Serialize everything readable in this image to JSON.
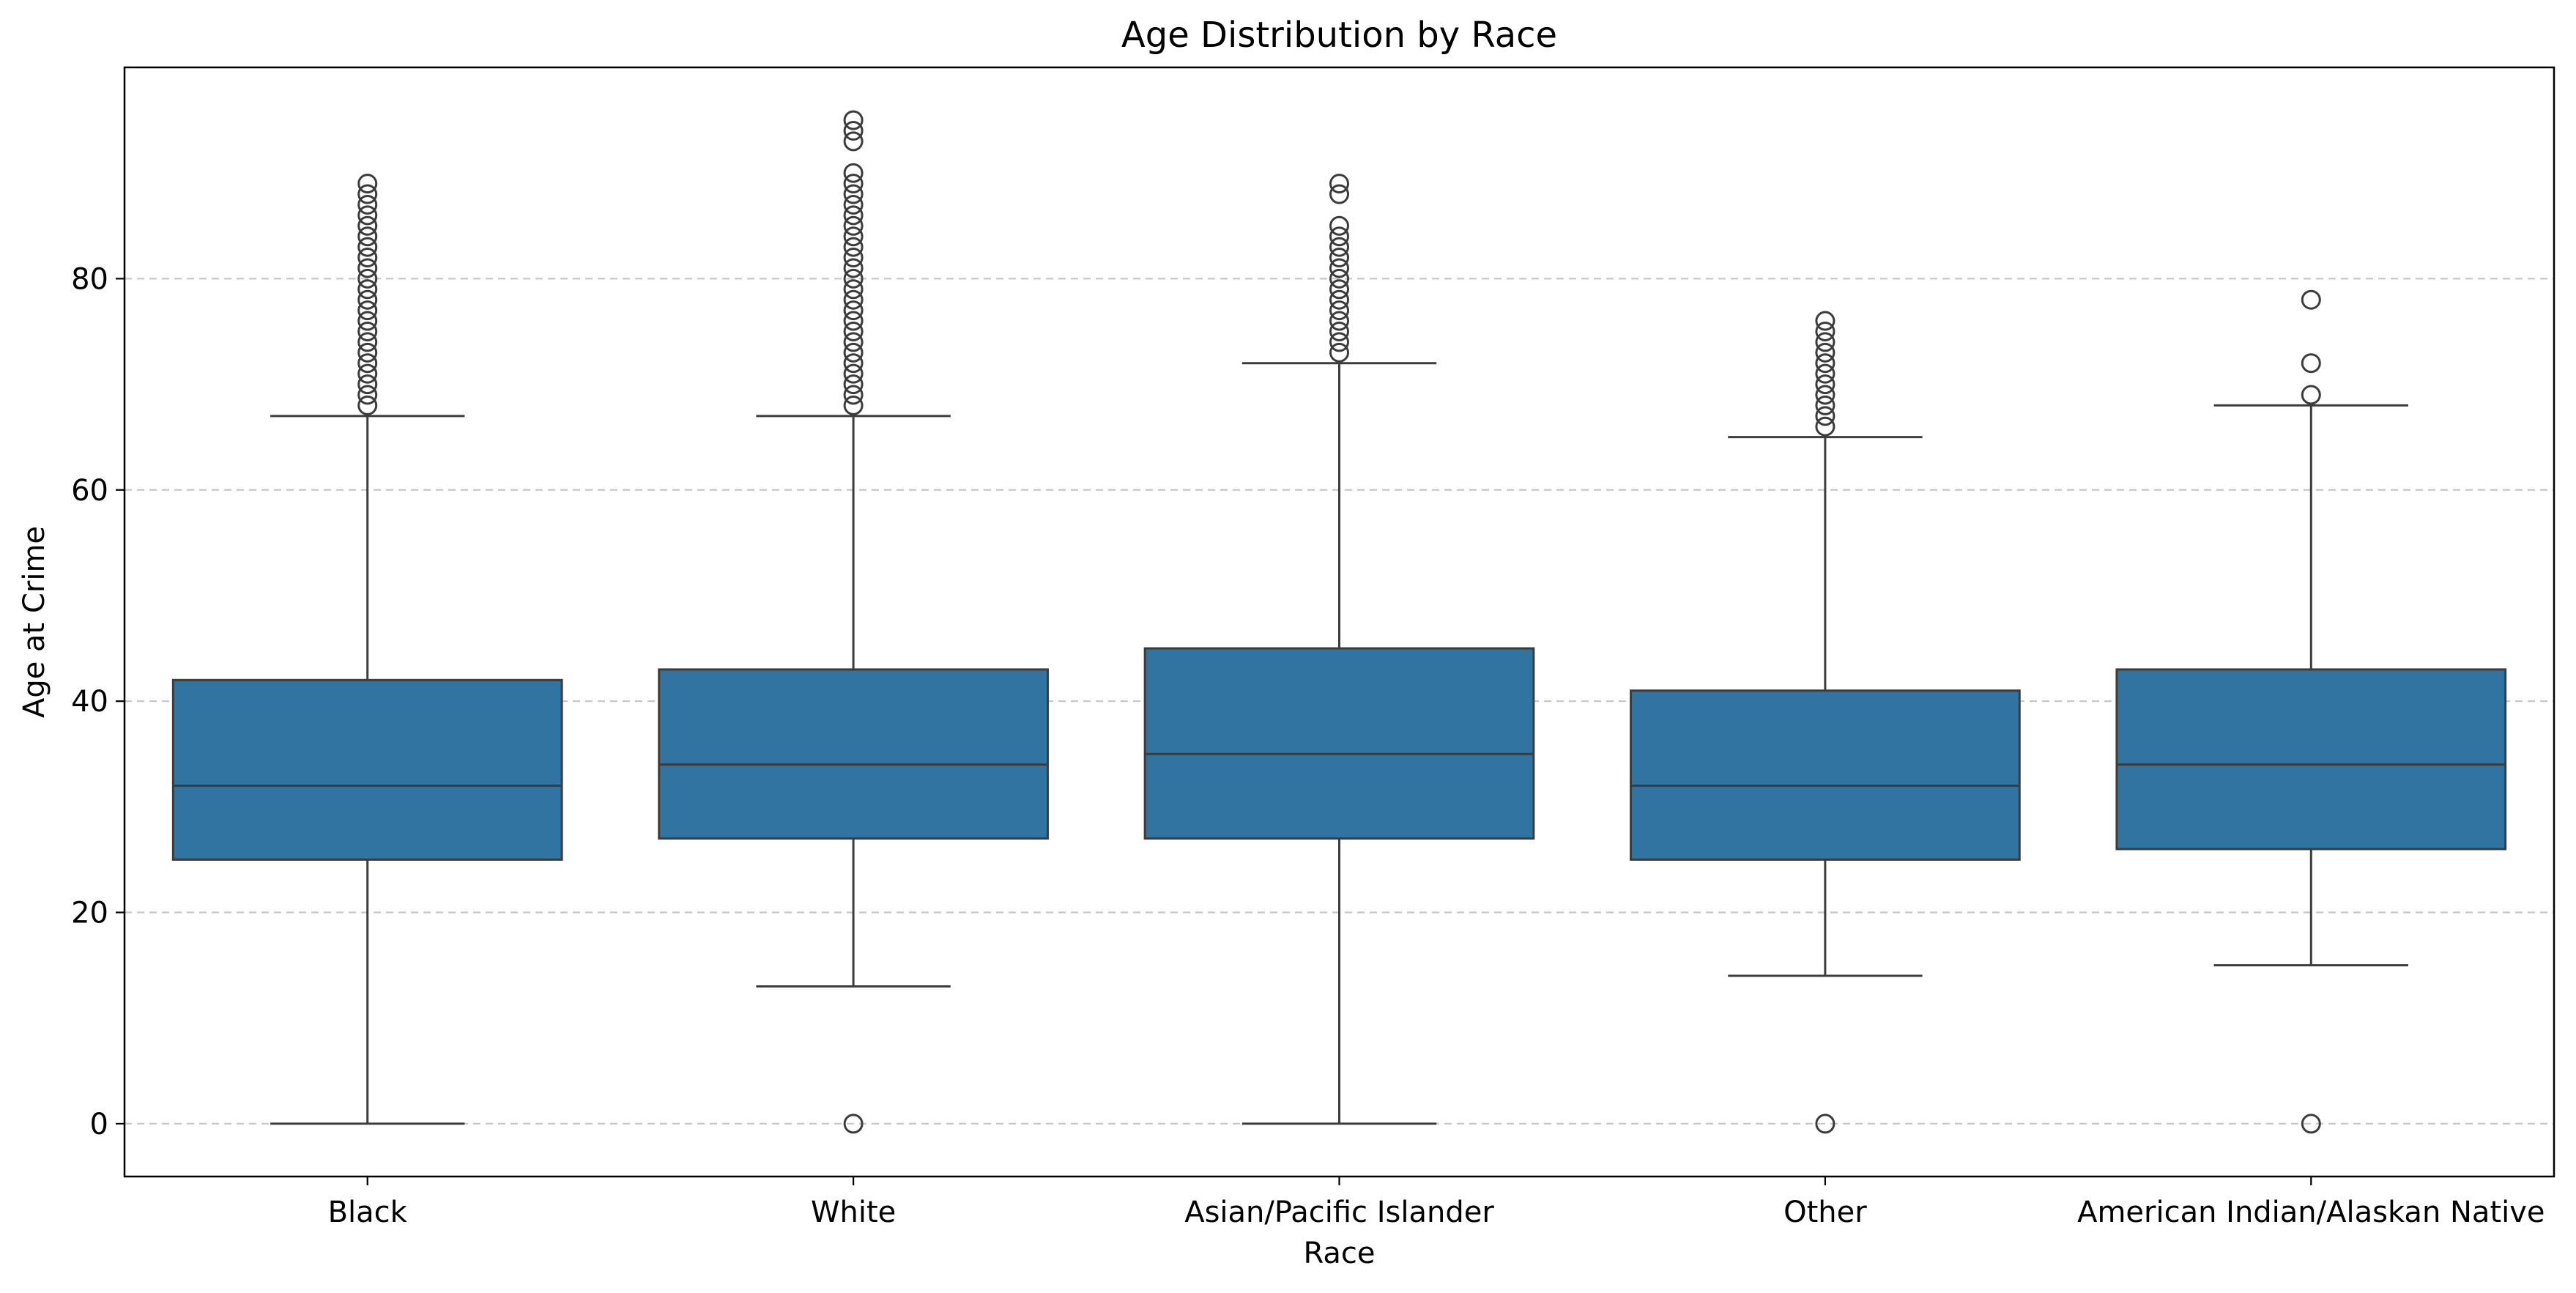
{
  "chart_data": {
    "type": "boxplot",
    "title": "Age Distribution by Race",
    "xlabel": "Race",
    "ylabel": "Age at Crime",
    "ylim": [
      -5,
      100
    ],
    "yticks": [
      0,
      20,
      40,
      60,
      80
    ],
    "grid": "y",
    "box_color": "#3274a1",
    "line_color": "#3c3c3c",
    "categories": [
      "Black",
      "White",
      "Asian/Pacific Islander",
      "Other",
      "American Indian/Alaskan Native"
    ],
    "boxes": [
      {
        "category": "Black",
        "whisker_low": 0,
        "q1": 25,
        "median": 32,
        "q3": 42,
        "whisker_high": 67,
        "outliers": [
          68,
          69,
          70,
          71,
          72,
          73,
          74,
          75,
          76,
          77,
          78,
          79,
          80,
          81,
          82,
          83,
          84,
          85,
          86,
          87,
          88,
          89
        ]
      },
      {
        "category": "White",
        "whisker_low": 13,
        "q1": 27,
        "median": 34,
        "q3": 43,
        "whisker_high": 67,
        "outliers": [
          0,
          68,
          69,
          70,
          71,
          72,
          73,
          74,
          75,
          76,
          77,
          78,
          79,
          80,
          81,
          82,
          83,
          84,
          85,
          86,
          87,
          88,
          89,
          90,
          93,
          94,
          95
        ]
      },
      {
        "category": "Asian/Pacific Islander",
        "whisker_low": 0,
        "q1": 27,
        "median": 35,
        "q3": 45,
        "whisker_high": 72,
        "outliers": [
          73,
          74,
          75,
          76,
          77,
          78,
          79,
          80,
          81,
          82,
          83,
          84,
          85,
          88,
          89
        ]
      },
      {
        "category": "Other",
        "whisker_low": 14,
        "q1": 25,
        "median": 32,
        "q3": 41,
        "whisker_high": 65,
        "outliers": [
          0,
          66,
          67,
          68,
          69,
          70,
          71,
          72,
          73,
          74,
          75,
          76
        ]
      },
      {
        "category": "American Indian/Alaskan Native",
        "whisker_low": 15,
        "q1": 26,
        "median": 34,
        "q3": 43,
        "whisker_high": 68,
        "outliers": [
          0,
          69,
          72,
          78
        ]
      }
    ]
  }
}
